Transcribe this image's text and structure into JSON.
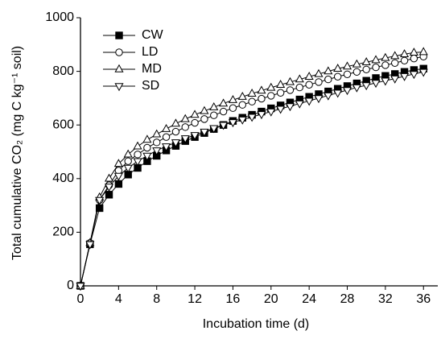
{
  "chart_data": {
    "type": "line",
    "xlabel": "Incubation time (d)",
    "ylabel": "Total cumulative CO₂ (mg C kg⁻¹ soil)",
    "x": [
      0,
      1,
      2,
      3,
      4,
      5,
      6,
      7,
      8,
      9,
      10,
      11,
      12,
      13,
      14,
      15,
      16,
      17,
      18,
      19,
      20,
      21,
      22,
      23,
      24,
      25,
      26,
      27,
      28,
      29,
      30,
      31,
      32,
      33,
      34,
      35,
      36
    ],
    "series": [
      {
        "name": "CW",
        "color": "#000000",
        "marker": "square",
        "filled": true,
        "values": [
          0,
          155,
          290,
          340,
          380,
          415,
          440,
          465,
          485,
          505,
          522,
          540,
          555,
          570,
          585,
          600,
          615,
          627,
          638,
          650,
          662,
          673,
          684,
          695,
          705,
          715,
          725,
          735,
          745,
          755,
          765,
          775,
          783,
          790,
          798,
          805,
          810
        ]
      },
      {
        "name": "LD",
        "color": "#000000",
        "marker": "circle",
        "filled": false,
        "values": [
          0,
          160,
          320,
          375,
          430,
          465,
          490,
          515,
          535,
          555,
          575,
          592,
          608,
          622,
          636,
          650,
          663,
          675,
          687,
          698,
          709,
          720,
          730,
          740,
          750,
          760,
          770,
          780,
          789,
          798,
          807,
          815,
          823,
          831,
          840,
          848,
          855
        ]
      },
      {
        "name": "MD",
        "color": "#000000",
        "marker": "triangle-up",
        "filled": false,
        "values": [
          0,
          160,
          330,
          400,
          455,
          490,
          520,
          545,
          565,
          585,
          605,
          622,
          638,
          652,
          666,
          680,
          693,
          705,
          717,
          728,
          739,
          750,
          760,
          770,
          780,
          790,
          800,
          810,
          818,
          826,
          834,
          842,
          850,
          857,
          864,
          870,
          872
        ]
      },
      {
        "name": "SD",
        "color": "#000000",
        "marker": "triangle-down",
        "filled": false,
        "values": [
          0,
          155,
          320,
          370,
          410,
          440,
          465,
          485,
          505,
          520,
          535,
          550,
          562,
          575,
          588,
          600,
          610,
          620,
          630,
          640,
          650,
          660,
          670,
          680,
          690,
          700,
          710,
          720,
          730,
          740,
          748,
          757,
          765,
          773,
          782,
          790,
          798
        ]
      }
    ],
    "xlim": [
      0,
      37.5
    ],
    "ylim": [
      0,
      1000
    ],
    "xticks": [
      0,
      4,
      8,
      12,
      16,
      20,
      24,
      28,
      32,
      36
    ],
    "yticks": [
      0,
      200,
      400,
      600,
      800,
      1000
    ],
    "legend": "top-left"
  }
}
